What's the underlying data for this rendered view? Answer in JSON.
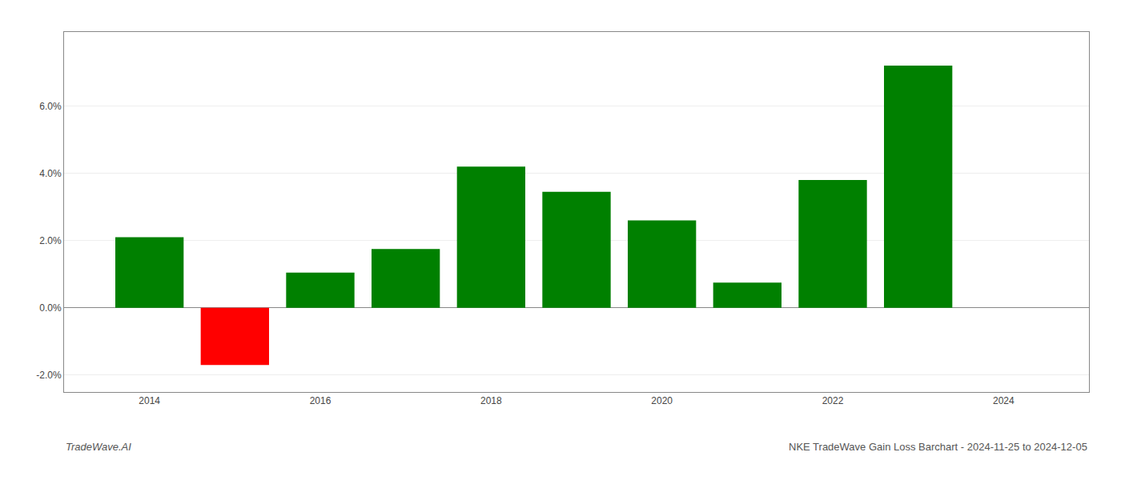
{
  "chart_data": {
    "type": "bar",
    "x": [
      2014,
      2015,
      2016,
      2017,
      2018,
      2019,
      2020,
      2021,
      2022,
      2023
    ],
    "values": [
      0.021,
      -0.017,
      0.0105,
      0.0175,
      0.042,
      0.0345,
      0.026,
      0.0075,
      0.038,
      0.072
    ],
    "colors": [
      "#008000",
      "#ff0000",
      "#008000",
      "#008000",
      "#008000",
      "#008000",
      "#008000",
      "#008000",
      "#008000",
      "#008000"
    ],
    "xlim": [
      2013.0,
      2025.0
    ],
    "xticks": [
      2014,
      2016,
      2018,
      2020,
      2022,
      2024
    ],
    "ylim": [
      -0.025,
      0.082
    ],
    "yticks": [
      {
        "value": -0.02,
        "label": "-2.0%"
      },
      {
        "value": 0.0,
        "label": "0.0%"
      },
      {
        "value": 0.02,
        "label": "2.0%"
      },
      {
        "value": 0.04,
        "label": "4.0%"
      },
      {
        "value": 0.06,
        "label": "6.0%"
      }
    ],
    "grid": true,
    "annotations": [
      "TradeWave.AI",
      "NKE TradeWave Gain Loss Barchart - 2024-11-25 to 2024-12-05"
    ]
  }
}
